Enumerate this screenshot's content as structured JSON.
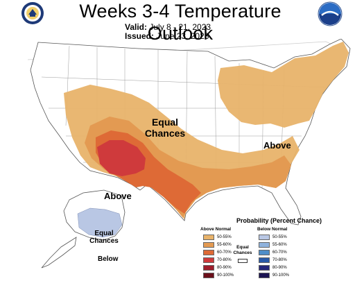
{
  "header": {
    "title": "Weeks 3-4 Temperature Outlook",
    "valid_label": "Valid:",
    "valid_value": "July 8 - 21, 2023",
    "issued_label": "Issued:",
    "issued_value": "June 23, 2023",
    "left_logo": "department-of-commerce-seal",
    "right_logo": "noaa-logo"
  },
  "map": {
    "labels": {
      "equal_main_1": "Equal",
      "equal_main_2": "Chances",
      "above_northeast": "Above",
      "above_southwest": "Above",
      "equal_alaska_1": "Equal",
      "equal_alaska_2": "Chances",
      "below_alaska": "Below"
    },
    "regions": [
      {
        "name": "southwest-inner-core",
        "category": "Above Normal",
        "probability": "70-80%"
      },
      {
        "name": "southwest-core",
        "category": "Above Normal",
        "probability": "60-70%"
      },
      {
        "name": "south-band",
        "category": "Above Normal",
        "probability": "55-60%"
      },
      {
        "name": "southwest-outer",
        "category": "Above Normal",
        "probability": "50-55%"
      },
      {
        "name": "northeast",
        "category": "Above Normal",
        "probability": "50-55%"
      },
      {
        "name": "alaska-southwest",
        "category": "Below Normal",
        "probability": "50-55%"
      }
    ]
  },
  "legend": {
    "title": "Probability (Percent Chance)",
    "above_heading": "Above Normal",
    "below_heading": "Below Normal",
    "equal_1": "Equal",
    "equal_2": "Chances",
    "above_items": [
      {
        "label": "50-55%",
        "color": "#e8b36a"
      },
      {
        "label": "55-60%",
        "color": "#e39a52"
      },
      {
        "label": "60-70%",
        "color": "#de6a36"
      },
      {
        "label": "70-80%",
        "color": "#cf3a3c"
      },
      {
        "label": "80-90%",
        "color": "#9e1e2c"
      },
      {
        "label": "90-100%",
        "color": "#6b0f1a"
      }
    ],
    "below_items": [
      {
        "label": "50-55%",
        "color": "#b9c7e4"
      },
      {
        "label": "55-60%",
        "color": "#8fb2dc"
      },
      {
        "label": "60-70%",
        "color": "#4f8ec9"
      },
      {
        "label": "70-80%",
        "color": "#2a5aa8"
      },
      {
        "label": "80-90%",
        "color": "#27287a"
      },
      {
        "label": "90-100%",
        "color": "#1b1351"
      }
    ]
  }
}
